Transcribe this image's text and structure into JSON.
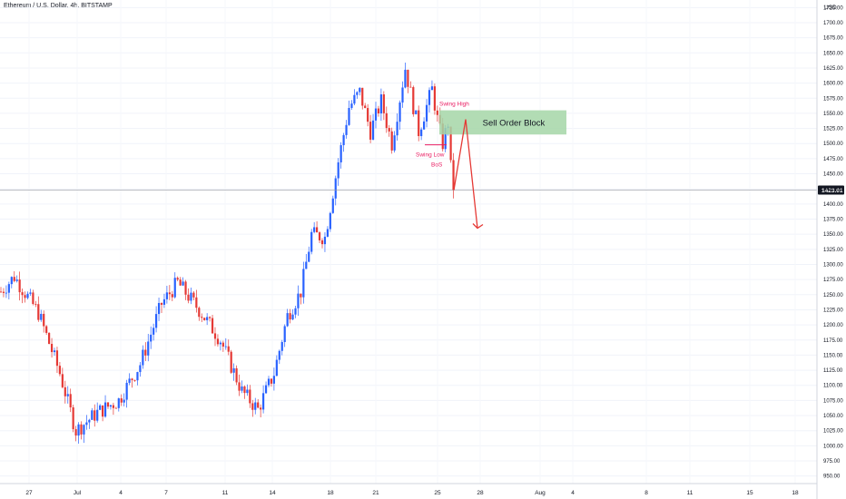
{
  "header": {
    "title": "Ethereum / U.S. Dollar, 4h, BITSTAMP"
  },
  "chart_data": {
    "type": "candlestick",
    "symbol": "Ethereum / U.S. Dollar",
    "interval": "4h",
    "exchange": "BITSTAMP",
    "currency_label": "USD",
    "ylim": [
      937.5,
      1737.5
    ],
    "y_ticks": [
      950,
      975,
      1000,
      1025,
      1050,
      1075,
      1100,
      1125,
      1150,
      1175,
      1200,
      1225,
      1250,
      1275,
      1300,
      1325,
      1350,
      1375,
      1400,
      1425,
      1450,
      1475,
      1500,
      1525,
      1550,
      1575,
      1600,
      1625,
      1650,
      1675,
      1700,
      1725
    ],
    "y_tick_labels": [
      "950.00",
      "975.00",
      "1000.00",
      "1025.00",
      "1050.00",
      "1075.00",
      "1100.00",
      "1125.00",
      "1150.00",
      "1175.00",
      "1200.00",
      "1225.00",
      "1250.00",
      "1275.00",
      "1300.00",
      "1325.00",
      "1350.00",
      "1375.00",
      "1400.00",
      "1425.00",
      "1450.00",
      "1475.00",
      "1500.00",
      "1525.00",
      "1550.00",
      "1575.00",
      "1600.00",
      "1625.00",
      "1650.00",
      "1675.00",
      "1700.00",
      "1725.00"
    ],
    "x_tick_labels": [
      "27",
      "Jul",
      "4",
      "7",
      "11",
      "14",
      "18",
      "21",
      "25",
      "28",
      "Aug",
      "4",
      "8",
      "11",
      "15",
      "18"
    ],
    "current_price": 1423.01,
    "current_price_label": "1423.01",
    "colors": {
      "up": "#2962ff",
      "down": "#e53935",
      "block": "#a5d6a7",
      "annotation": "#e91e63",
      "arrow": "#e53935",
      "price_tag": "#131722"
    },
    "candle_count": 184,
    "key_points": [
      {
        "t": 0,
        "v": 1255
      },
      {
        "t": 5,
        "v": 1280
      },
      {
        "t": 14,
        "v": 1220
      },
      {
        "t": 22,
        "v": 1120
      },
      {
        "t": 28,
        "v": 1025
      },
      {
        "t": 36,
        "v": 1055
      },
      {
        "t": 44,
        "v": 1075
      },
      {
        "t": 52,
        "v": 1135
      },
      {
        "t": 60,
        "v": 1235
      },
      {
        "t": 66,
        "v": 1270
      },
      {
        "t": 74,
        "v": 1225
      },
      {
        "t": 82,
        "v": 1175
      },
      {
        "t": 90,
        "v": 1090
      },
      {
        "t": 96,
        "v": 1060
      },
      {
        "t": 102,
        "v": 1120
      },
      {
        "t": 107,
        "v": 1215
      },
      {
        "t": 112,
        "v": 1255
      },
      {
        "t": 116,
        "v": 1350
      },
      {
        "t": 121,
        "v": 1345
      },
      {
        "t": 126,
        "v": 1470
      },
      {
        "t": 130,
        "v": 1560
      },
      {
        "t": 134,
        "v": 1585
      },
      {
        "t": 138,
        "v": 1520
      },
      {
        "t": 142,
        "v": 1570
      },
      {
        "t": 146,
        "v": 1500
      },
      {
        "t": 151,
        "v": 1625
      },
      {
        "t": 156,
        "v": 1520
      },
      {
        "t": 161,
        "v": 1590
      },
      {
        "t": 163,
        "v": 1540
      },
      {
        "t": 165,
        "v": 1500
      },
      {
        "t": 167,
        "v": 1535
      },
      {
        "t": 168,
        "v": 1460
      },
      {
        "t": 169,
        "v": 1423
      }
    ],
    "annotations": {
      "order_block": {
        "label": "Sell Order Block",
        "from_price": 1515,
        "to_price": 1555
      },
      "swing_high": {
        "label": "Swing High",
        "price": 1558
      },
      "swing_low": {
        "label": "Swing Low",
        "price": 1498
      },
      "bos": {
        "label": "BoS",
        "price": 1498
      },
      "projection": [
        1423,
        1540,
        1360
      ]
    }
  }
}
